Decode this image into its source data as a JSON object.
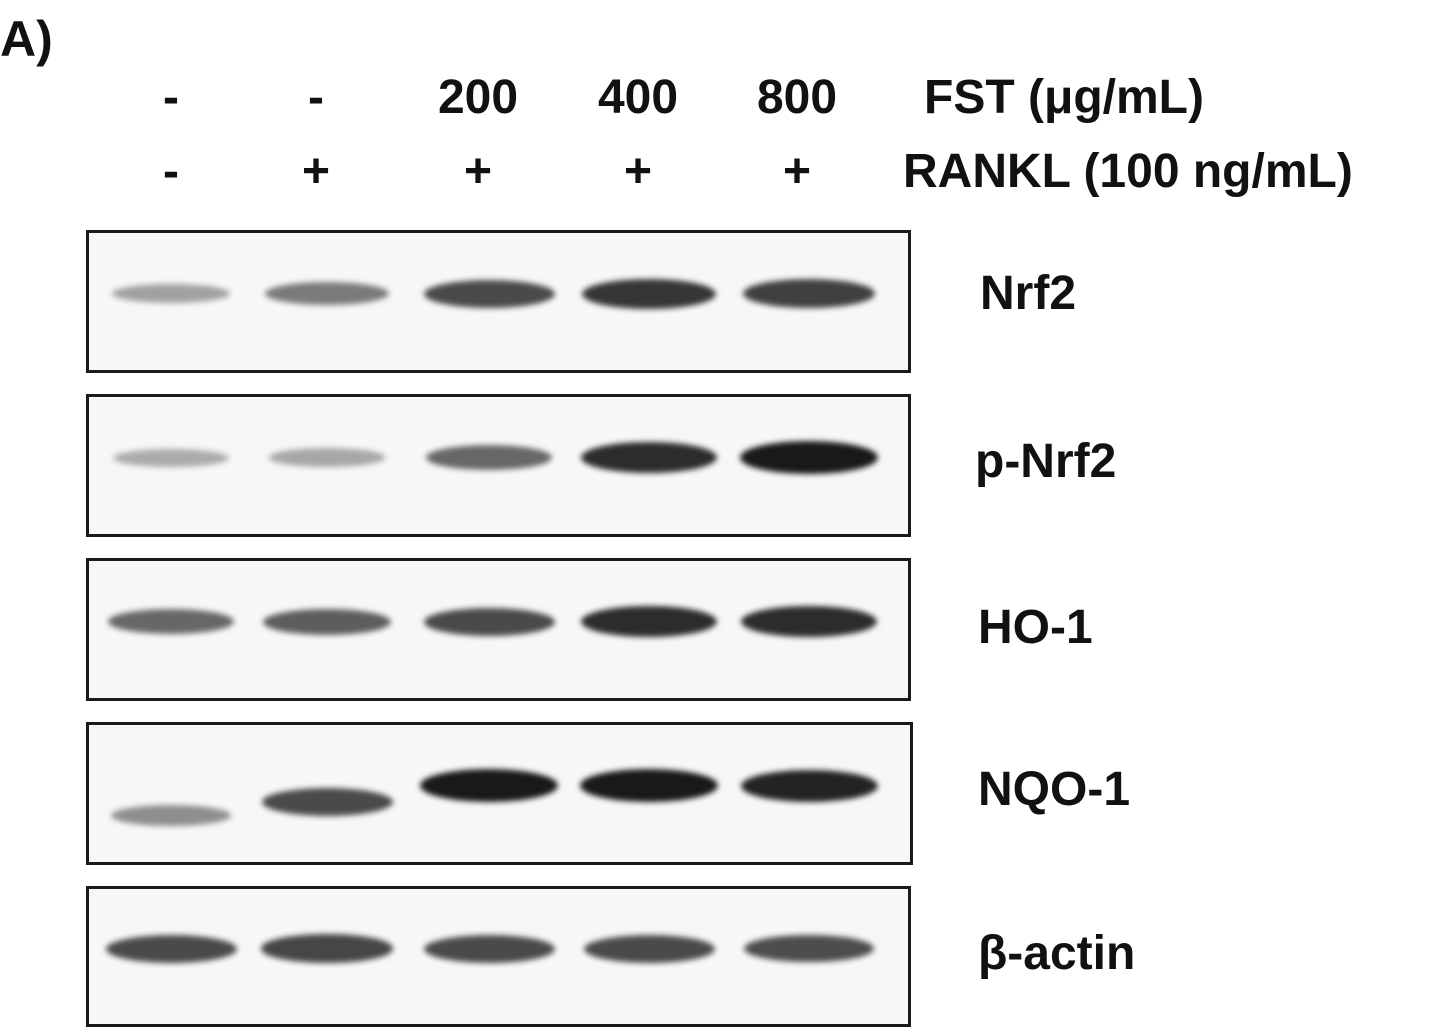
{
  "panel_label": "A)",
  "treatments": [
    {
      "name": "FST (μg/mL)",
      "values": [
        "-",
        "-",
        "200",
        "400",
        "800"
      ]
    },
    {
      "name": "RANKL (100 ng/mL)",
      "values": [
        "-",
        "+",
        "+",
        "+",
        "+"
      ]
    }
  ],
  "blots": [
    {
      "protein": "Nrf2",
      "intensity": [
        0.25,
        0.45,
        0.7,
        0.8,
        0.75
      ]
    },
    {
      "protein": "p-Nrf2",
      "intensity": [
        0.2,
        0.22,
        0.55,
        0.85,
        0.95
      ]
    },
    {
      "protein": "HO-1",
      "intensity": [
        0.55,
        0.6,
        0.7,
        0.85,
        0.85
      ]
    },
    {
      "protein": "NQO-1",
      "intensity": [
        0.35,
        0.7,
        0.95,
        0.95,
        0.9
      ]
    },
    {
      "protein": "β-actin",
      "intensity": [
        0.7,
        0.72,
        0.7,
        0.7,
        0.68
      ]
    }
  ]
}
